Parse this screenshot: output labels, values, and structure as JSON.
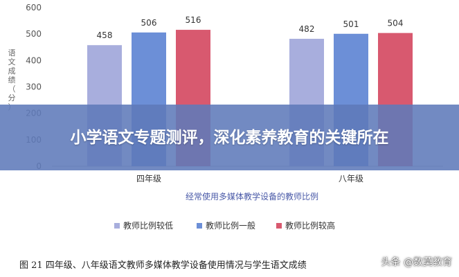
{
  "chart_data": {
    "type": "bar",
    "categories": [
      "四年级",
      "八年级"
    ],
    "series": [
      {
        "name": "教师比例较低",
        "values": [
          458,
          482
        ],
        "color": "#a8aedd"
      },
      {
        "name": "教师比例一般",
        "values": [
          506,
          501
        ],
        "color": "#6c8fd7"
      },
      {
        "name": "教师比例较高",
        "values": [
          516,
          504
        ],
        "color": "#d8596f"
      }
    ],
    "ylim": [
      0,
      600
    ],
    "yticks": [
      0,
      100,
      200,
      300,
      400,
      500,
      600
    ],
    "ylabel_chars": [
      "语",
      "文",
      "成",
      "绩",
      "（",
      "分",
      "）"
    ],
    "subtitle": "经常使用多媒体教学设备的教师比例",
    "legend_position": "bottom",
    "grid": false
  },
  "banner": {
    "title": "小学语文专题测评，深化素养教育的关键所在"
  },
  "caption": "图 21   四年级、八年级语文教师多媒体教学设备使用情况与学生语文成绩",
  "watermark": "头条 @数莫教育"
}
